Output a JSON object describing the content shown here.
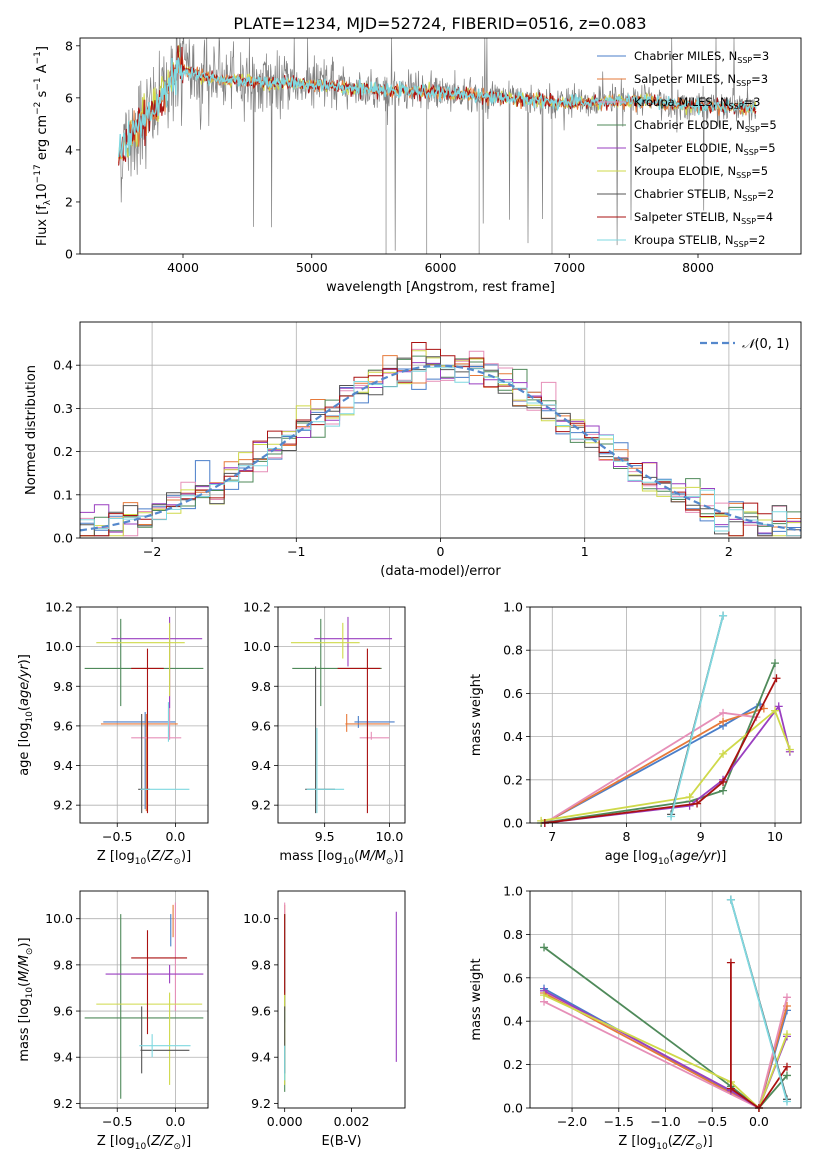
{
  "figure": {
    "title": "PLATE=1234, MJD=52724, FIBERID=0516, z=0.083"
  },
  "colors": {
    "chabrier_miles": "#4a7ec9",
    "salpeter_miles": "#e6793a",
    "kroupa_miles": "#e68fb8",
    "chabrier_elodie": "#4f8a5a",
    "salpeter_elodie": "#9a3fc0",
    "kroupa_elodie": "#cfd94a",
    "chabrier_stelib": "#555555",
    "salpeter_stelib": "#aa1111",
    "kroupa_stelib": "#7fd8e0",
    "data": "#808080",
    "normal": "#5588cc"
  },
  "legend": [
    {
      "label": "Chabrier MILES, N",
      "sub": "SSP",
      "tail": "=3",
      "color_key": "chabrier_miles"
    },
    {
      "label": "Salpeter MILES, N",
      "sub": "SSP",
      "tail": "=3",
      "color_key": "salpeter_miles"
    },
    {
      "label": "Kroupa MILES, N",
      "sub": "SSP",
      "tail": "=3",
      "color_key": "kroupa_miles"
    },
    {
      "label": "Chabrier ELODIE, N",
      "sub": "SSP",
      "tail": "=5",
      "color_key": "chabrier_elodie"
    },
    {
      "label": "Salpeter ELODIE, N",
      "sub": "SSP",
      "tail": "=5",
      "color_key": "salpeter_elodie"
    },
    {
      "label": "Kroupa ELODIE, N",
      "sub": "SSP",
      "tail": "=5",
      "color_key": "kroupa_elodie"
    },
    {
      "label": "Chabrier STELIB, N",
      "sub": "SSP",
      "tail": "=2",
      "color_key": "chabrier_stelib"
    },
    {
      "label": "Salpeter STELIB, N",
      "sub": "SSP",
      "tail": "=4",
      "color_key": "salpeter_stelib"
    },
    {
      "label": "Kroupa STELIB, N",
      "sub": "SSP",
      "tail": "=2",
      "color_key": "kroupa_stelib"
    }
  ],
  "chart_data": [
    {
      "id": "spectrum",
      "type": "line",
      "xlabel": "wavelength [Angstrom, rest frame]",
      "ylabel": "Flux [f_λ 10^-17 erg cm^-2 s^-1 A^-1]",
      "xlim": [
        3200,
        8800
      ],
      "ylim": [
        0,
        8.3
      ],
      "xticks": [
        4000,
        5000,
        6000,
        7000,
        8000
      ],
      "yticks": [
        0,
        2,
        4,
        6,
        8
      ],
      "grid": false,
      "legend_position": "right",
      "data_range": [
        3500,
        8450
      ],
      "continuum_points": [
        [
          3500,
          3.8
        ],
        [
          3650,
          5.0
        ],
        [
          3800,
          5.6
        ],
        [
          3950,
          7.2
        ],
        [
          4100,
          6.9
        ],
        [
          4300,
          6.7
        ],
        [
          4600,
          6.6
        ],
        [
          5000,
          6.5
        ],
        [
          5500,
          6.3
        ],
        [
          6000,
          6.2
        ],
        [
          6500,
          6.0
        ],
        [
          7000,
          5.8
        ],
        [
          7500,
          5.9
        ],
        [
          8000,
          5.7
        ],
        [
          8450,
          5.6
        ]
      ]
    },
    {
      "id": "residuals",
      "type": "histogram",
      "xlabel": "(data-model)/error",
      "ylabel": "Normed distribution",
      "xlim": [
        -2.5,
        2.5
      ],
      "ylim": [
        0,
        0.5
      ],
      "xticks": [
        -2,
        -1,
        0,
        1,
        2
      ],
      "yticks": [
        0.0,
        0.1,
        0.2,
        0.3,
        0.4
      ],
      "grid": true,
      "legend_position": "upper right",
      "normal_label": "N(0,1)",
      "bin_width": 0.1
    },
    {
      "id": "age_vs_Z",
      "type": "scatter",
      "xlabel": "Z [log10(Z/Z⊙)]",
      "ylabel": "age  [log10(age/yr)]",
      "xlim": [
        -0.82,
        0.28
      ],
      "ylim": [
        9.11,
        10.2
      ],
      "xticks": [
        -0.5,
        0.0
      ],
      "yticks": [
        9.2,
        9.4,
        9.6,
        9.8,
        10.0,
        10.2
      ],
      "grid": true,
      "errorbars": [
        {
          "c": "chabrier_miles",
          "x": -0.26,
          "y": 9.62,
          "xe": [
            -0.62,
            0.0
          ],
          "ye": [
            9.18,
            9.67
          ]
        },
        {
          "c": "salpeter_miles",
          "x": -0.25,
          "y": 9.61,
          "xe": [
            -0.64,
            0.02
          ],
          "ye": [
            9.17,
            9.66
          ]
        },
        {
          "c": "kroupa_miles",
          "x": -0.05,
          "y": 9.54,
          "xe": [
            -0.38,
            0.05
          ],
          "ye": [
            9.53,
            10.0
          ]
        },
        {
          "c": "chabrier_elodie",
          "x": -0.47,
          "y": 9.89,
          "xe": [
            -0.78,
            0.24
          ],
          "ye": [
            9.7,
            10.14
          ]
        },
        {
          "c": "salpeter_elodie",
          "x": -0.05,
          "y": 10.04,
          "xe": [
            -0.55,
            0.23
          ],
          "ye": [
            9.69,
            10.15
          ]
        },
        {
          "c": "kroupa_elodie",
          "x": -0.05,
          "y": 10.02,
          "xe": [
            -0.68,
            0.08
          ],
          "ye": [
            9.75,
            10.12
          ]
        },
        {
          "c": "chabrier_stelib",
          "x": -0.29,
          "y": 9.28,
          "xe": [
            -0.32,
            -0.22
          ],
          "ye": [
            9.16,
            9.66
          ]
        },
        {
          "c": "salpeter_stelib",
          "x": -0.24,
          "y": 9.89,
          "xe": [
            -0.38,
            -0.1
          ],
          "ye": [
            9.16,
            9.99
          ]
        },
        {
          "c": "kroupa_stelib",
          "x": -0.06,
          "y": 9.28,
          "xe": [
            -0.3,
            0.12
          ],
          "ye": [
            9.52,
            9.72
          ]
        }
      ]
    },
    {
      "id": "age_vs_mass",
      "type": "scatter",
      "xlabel": "mass [log10(M/M⊙)]",
      "ylabel": "",
      "xlim": [
        9.14,
        10.12
      ],
      "ylim": [
        9.11,
        10.2
      ],
      "xticks": [
        9.5,
        10.0
      ],
      "yticks": [
        9.2,
        9.4,
        9.6,
        9.8,
        10.0,
        10.2
      ],
      "grid": true,
      "errorbars": [
        {
          "c": "chabrier_miles",
          "x": 9.76,
          "y": 9.62,
          "xe": [
            9.73,
            10.04
          ],
          "ye": [
            9.59,
            9.65
          ]
        },
        {
          "c": "salpeter_miles",
          "x": 9.67,
          "y": 9.61,
          "xe": [
            9.66,
            10.0
          ],
          "ye": [
            9.57,
            9.66
          ]
        },
        {
          "c": "kroupa_miles",
          "x": 9.86,
          "y": 9.54,
          "xe": [
            9.77,
            10.0
          ],
          "ye": [
            9.53,
            9.57
          ]
        },
        {
          "c": "chabrier_elodie",
          "x": 9.47,
          "y": 9.89,
          "xe": [
            9.25,
            9.94
          ],
          "ye": [
            9.7,
            10.14
          ]
        },
        {
          "c": "salpeter_elodie",
          "x": 9.68,
          "y": 10.04,
          "xe": [
            9.42,
            10.02
          ],
          "ye": [
            9.9,
            10.15
          ]
        },
        {
          "c": "kroupa_elodie",
          "x": 9.64,
          "y": 10.02,
          "xe": [
            9.24,
            9.77
          ],
          "ye": [
            9.94,
            10.12
          ]
        },
        {
          "c": "chabrier_stelib",
          "x": 9.43,
          "y": 9.28,
          "xe": [
            9.35,
            9.58
          ],
          "ye": [
            9.16,
            9.9
          ]
        },
        {
          "c": "salpeter_stelib",
          "x": 9.83,
          "y": 9.89,
          "xe": [
            9.6,
            9.93
          ],
          "ye": [
            9.16,
            9.99
          ]
        },
        {
          "c": "kroupa_stelib",
          "x": 9.44,
          "y": 9.28,
          "xe": [
            9.36,
            9.65
          ],
          "ye": [
            9.16,
            9.59
          ]
        }
      ]
    },
    {
      "id": "weight_vs_age",
      "type": "line",
      "xlabel": "age  [log10(age/yr)]",
      "ylabel": "mass weight",
      "xlim": [
        6.7,
        10.35
      ],
      "ylim": [
        0,
        1.0
      ],
      "xticks": [
        7,
        8,
        9,
        10
      ],
      "yticks": [
        0.0,
        0.2,
        0.4,
        0.6,
        0.8,
        1.0
      ],
      "grid": true,
      "series": [
        {
          "c": "chabrier_miles",
          "x": [
            6.9,
            9.3,
            9.8
          ],
          "y": [
            0.0,
            0.45,
            0.55
          ]
        },
        {
          "c": "salpeter_miles",
          "x": [
            6.9,
            9.3,
            9.85
          ],
          "y": [
            0.0,
            0.47,
            0.53
          ]
        },
        {
          "c": "kroupa_miles",
          "x": [
            6.9,
            9.3,
            9.75
          ],
          "y": [
            0.0,
            0.51,
            0.49
          ]
        },
        {
          "c": "chabrier_elodie",
          "x": [
            6.85,
            8.85,
            9.3,
            10.0
          ],
          "y": [
            0.0,
            0.1,
            0.15,
            0.74
          ]
        },
        {
          "c": "salpeter_elodie",
          "x": [
            6.9,
            8.85,
            9.3,
            10.05,
            10.2
          ],
          "y": [
            0.0,
            0.08,
            0.2,
            0.54,
            0.33
          ]
        },
        {
          "c": "kroupa_elodie",
          "x": [
            6.85,
            8.85,
            9.3,
            10.0,
            10.2
          ],
          "y": [
            0.01,
            0.12,
            0.32,
            0.52,
            0.34
          ]
        },
        {
          "c": "chabrier_stelib",
          "x": [
            8.6,
            9.3
          ],
          "y": [
            0.04,
            0.96
          ]
        },
        {
          "c": "salpeter_stelib",
          "x": [
            6.9,
            8.95,
            9.3,
            10.02
          ],
          "y": [
            0.0,
            0.09,
            0.19,
            0.67
          ]
        },
        {
          "c": "kroupa_stelib",
          "x": [
            8.6,
            9.3
          ],
          "y": [
            0.03,
            0.96
          ]
        }
      ]
    },
    {
      "id": "mass_vs_Z",
      "type": "scatter",
      "xlabel": "Z [log10(Z/Z⊙)]",
      "ylabel": "mass [log10(M/M⊙)]",
      "xlim": [
        -0.82,
        0.28
      ],
      "ylim": [
        9.18,
        10.12
      ],
      "xticks": [
        -0.5,
        0.0
      ],
      "yticks": [
        9.2,
        9.4,
        9.6,
        9.8,
        10.0
      ],
      "grid": true,
      "errorbars": [
        {
          "c": "chabrier_miles",
          "x": -0.04,
          "y": 9.95,
          "xe": [
            -0.04,
            -0.04
          ],
          "ye": [
            9.88,
            10.02
          ]
        },
        {
          "c": "salpeter_miles",
          "x": -0.02,
          "y": 9.98,
          "xe": [
            -0.02,
            -0.02
          ],
          "ye": [
            9.92,
            10.06
          ]
        },
        {
          "c": "kroupa_miles",
          "x": 0.0,
          "y": 9.98,
          "xe": [
            0.0,
            0.0
          ],
          "ye": [
            9.6,
            10.07
          ]
        },
        {
          "c": "chabrier_elodie",
          "x": -0.47,
          "y": 9.57,
          "xe": [
            -0.78,
            0.24
          ],
          "ye": [
            9.22,
            10.02
          ]
        },
        {
          "c": "salpeter_elodie",
          "x": -0.05,
          "y": 9.76,
          "xe": [
            -0.6,
            0.24
          ],
          "ye": [
            9.72,
            9.8
          ]
        },
        {
          "c": "kroupa_elodie",
          "x": -0.05,
          "y": 9.63,
          "xe": [
            -0.68,
            0.23
          ],
          "ye": [
            9.28,
            9.68
          ]
        },
        {
          "c": "chabrier_stelib",
          "x": -0.29,
          "y": 9.43,
          "xe": [
            -0.3,
            0.12
          ],
          "ye": [
            9.33,
            9.62
          ]
        },
        {
          "c": "salpeter_stelib",
          "x": -0.24,
          "y": 9.83,
          "xe": [
            -0.38,
            0.1
          ],
          "ye": [
            9.5,
            9.95
          ]
        },
        {
          "c": "kroupa_stelib",
          "x": -0.2,
          "y": 9.45,
          "xe": [
            -0.31,
            0.13
          ],
          "ye": [
            9.4,
            9.5
          ]
        }
      ]
    },
    {
      "id": "mass_vs_ebv",
      "type": "scatter",
      "xlabel": "E(B-V)",
      "ylabel": "",
      "xlim": [
        -0.0002,
        0.0036
      ],
      "ylim": [
        9.18,
        10.12
      ],
      "xticks": [
        0.0,
        0.002
      ],
      "yticks": [
        9.2,
        9.4,
        9.6,
        9.8,
        10.0
      ],
      "grid": false,
      "vlines": [
        {
          "c": "chabrier_miles",
          "x": 0.0,
          "ye": [
            9.55,
            10.02
          ]
        },
        {
          "c": "salpeter_miles",
          "x": 0.0,
          "ye": [
            9.6,
            10.06
          ]
        },
        {
          "c": "kroupa_miles",
          "x": 0.0,
          "ye": [
            9.6,
            10.07
          ]
        },
        {
          "c": "chabrier_elodie",
          "x": 0.0,
          "ye": [
            9.25,
            10.02
          ]
        },
        {
          "c": "salpeter_elodie",
          "x": 0.00334,
          "ye": [
            9.38,
            10.03
          ]
        },
        {
          "c": "kroupa_elodie",
          "x": 0.0,
          "ye": [
            9.28,
            9.68
          ]
        },
        {
          "c": "chabrier_stelib",
          "x": 0.0,
          "ye": [
            9.33,
            9.62
          ]
        },
        {
          "c": "salpeter_stelib",
          "x": 0.0,
          "ye": [
            9.67,
            10.02
          ]
        },
        {
          "c": "kroupa_stelib",
          "x": 0.0,
          "ye": [
            9.3,
            9.45
          ]
        }
      ]
    },
    {
      "id": "weight_vs_Z",
      "type": "line",
      "xlabel": "Z [log10(Z/Z⊙)]",
      "ylabel": "mass weight",
      "xlim": [
        -2.45,
        0.45
      ],
      "ylim": [
        0,
        1.0
      ],
      "xticks": [
        -2.0,
        -1.5,
        -1.0,
        -0.5,
        0.0
      ],
      "yticks": [
        0.0,
        0.2,
        0.4,
        0.6,
        0.8,
        1.0
      ],
      "grid": true,
      "series": [
        {
          "c": "chabrier_miles",
          "x": [
            -2.3,
            0.0,
            0.3
          ],
          "y": [
            0.55,
            0.0,
            0.45
          ]
        },
        {
          "c": "salpeter_miles",
          "x": [
            -2.3,
            0.0,
            0.3
          ],
          "y": [
            0.53,
            0.0,
            0.47
          ]
        },
        {
          "c": "kroupa_miles",
          "x": [
            -2.3,
            0.0,
            0.3
          ],
          "y": [
            0.49,
            0.0,
            0.51
          ]
        },
        {
          "c": "chabrier_elodie",
          "x": [
            -2.3,
            -0.3,
            0.0,
            0.3
          ],
          "y": [
            0.74,
            0.1,
            0.0,
            0.15
          ]
        },
        {
          "c": "salpeter_elodie",
          "x": [
            -2.3,
            -0.3,
            0.0,
            0.3
          ],
          "y": [
            0.54,
            0.08,
            0.0,
            0.33
          ]
        },
        {
          "c": "kroupa_elodie",
          "x": [
            -2.3,
            -0.3,
            0.0,
            0.3
          ],
          "y": [
            0.52,
            0.12,
            0.0,
            0.34
          ]
        },
        {
          "c": "chabrier_stelib",
          "x": [
            -0.3,
            0.3
          ],
          "y": [
            0.96,
            0.04
          ]
        },
        {
          "c": "salpeter_stelib",
          "x": [
            -0.3,
            -0.3,
            0.0,
            0.3
          ],
          "y": [
            0.67,
            0.09,
            0.0,
            0.19
          ]
        },
        {
          "c": "kroupa_stelib",
          "x": [
            -0.3,
            0.3
          ],
          "y": [
            0.96,
            0.03
          ]
        }
      ]
    }
  ]
}
